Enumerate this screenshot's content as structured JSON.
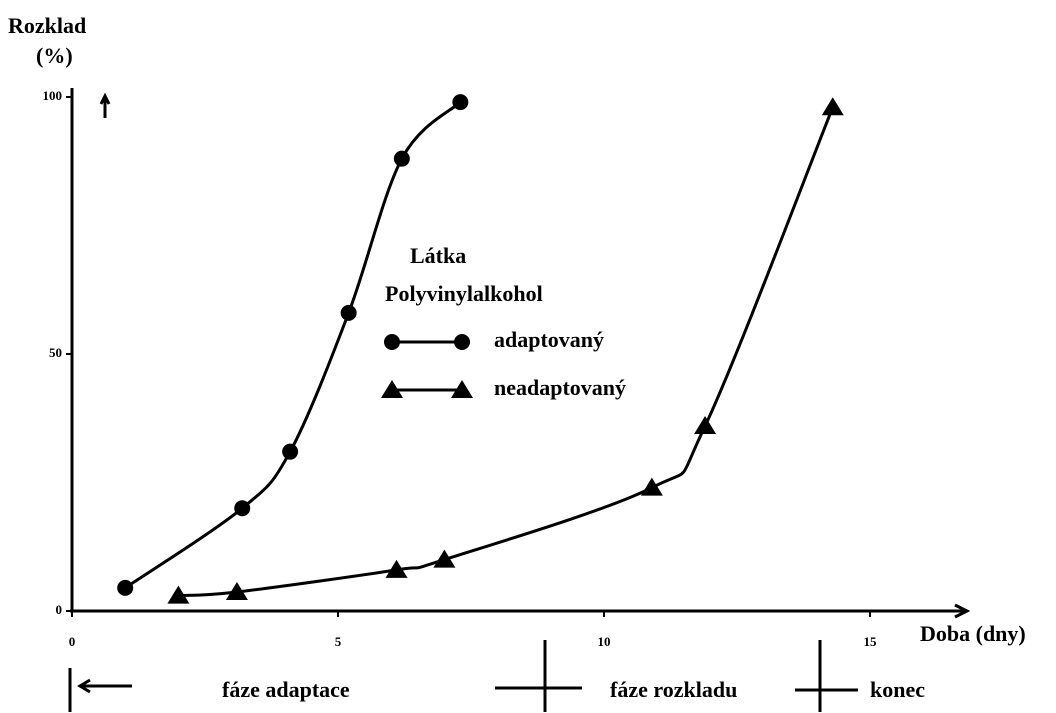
{
  "chart_data": {
    "type": "line",
    "ylabel": [
      "Rozklad",
      "(%)"
    ],
    "xlabel": "Doba (dny)",
    "legend_title": [
      "Látka",
      "Polyvinylalkohol"
    ],
    "xlim": [
      0,
      17
    ],
    "ylim": [
      0,
      100
    ],
    "xticks": [
      0,
      5,
      10,
      15
    ],
    "yticks": [
      0,
      50,
      100
    ],
    "series": [
      {
        "name": "adaptovaný",
        "marker": "circle",
        "color": "#000000",
        "x": [
          1.0,
          3.2,
          4.1,
          5.2,
          6.2,
          7.3
        ],
        "values": [
          4.5,
          20,
          31,
          58,
          88,
          99
        ]
      },
      {
        "name": "neadaptovaný",
        "marker": "triangle",
        "color": "#000000",
        "x": [
          2.0,
          3.1,
          6.1,
          7.0,
          10.9,
          11.9,
          14.3
        ],
        "values": [
          3,
          3.7,
          8,
          10,
          24,
          36,
          98
        ]
      }
    ],
    "phases": [
      "fáze adaptace",
      "fáze rozkladu",
      "konec"
    ]
  }
}
